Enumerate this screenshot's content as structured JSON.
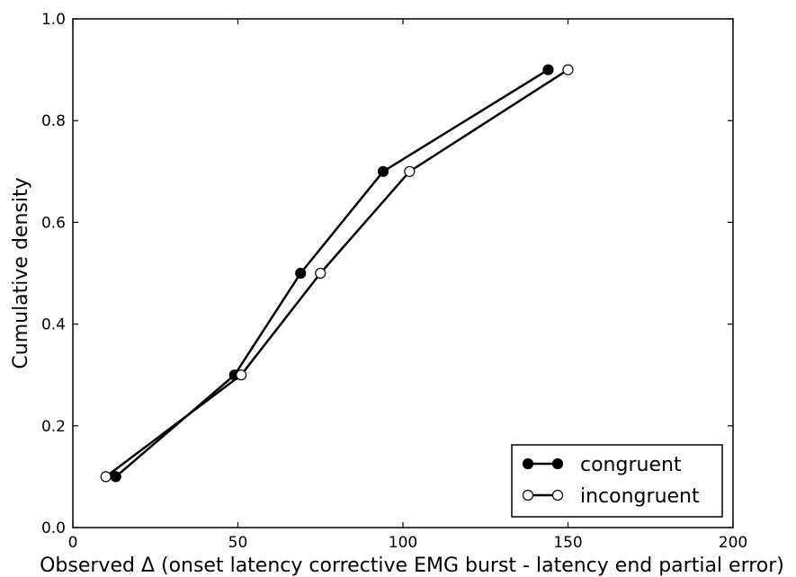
{
  "chart_data": {
    "type": "line",
    "xlabel": "Observed Δ (onset latency corrective EMG burst - latency end partial error)",
    "ylabel": "Cumulative density",
    "xlim": [
      0,
      200
    ],
    "ylim": [
      0,
      1.0
    ],
    "xticks": [
      0,
      50,
      100,
      150,
      200
    ],
    "xtick_labels": [
      "0",
      "50",
      "100",
      "150",
      "200"
    ],
    "yticks": [
      0.0,
      0.2,
      0.4,
      0.6,
      0.8,
      1.0
    ],
    "ytick_labels": [
      "0.0",
      "0.2",
      "0.4",
      "0.6",
      "0.8",
      "1.0"
    ],
    "grid": false,
    "legend_position": "bottom-right",
    "series": [
      {
        "name": "congruent",
        "marker": "filled-circle",
        "color": "#000000",
        "x": [
          13,
          49,
          69,
          94,
          144
        ],
        "y": [
          0.1,
          0.3,
          0.5,
          0.7,
          0.9
        ]
      },
      {
        "name": "incongruent",
        "marker": "open-circle",
        "color": "#000000",
        "x": [
          10,
          51,
          75,
          102,
          150
        ],
        "y": [
          0.1,
          0.3,
          0.5,
          0.7,
          0.9
        ]
      }
    ]
  }
}
